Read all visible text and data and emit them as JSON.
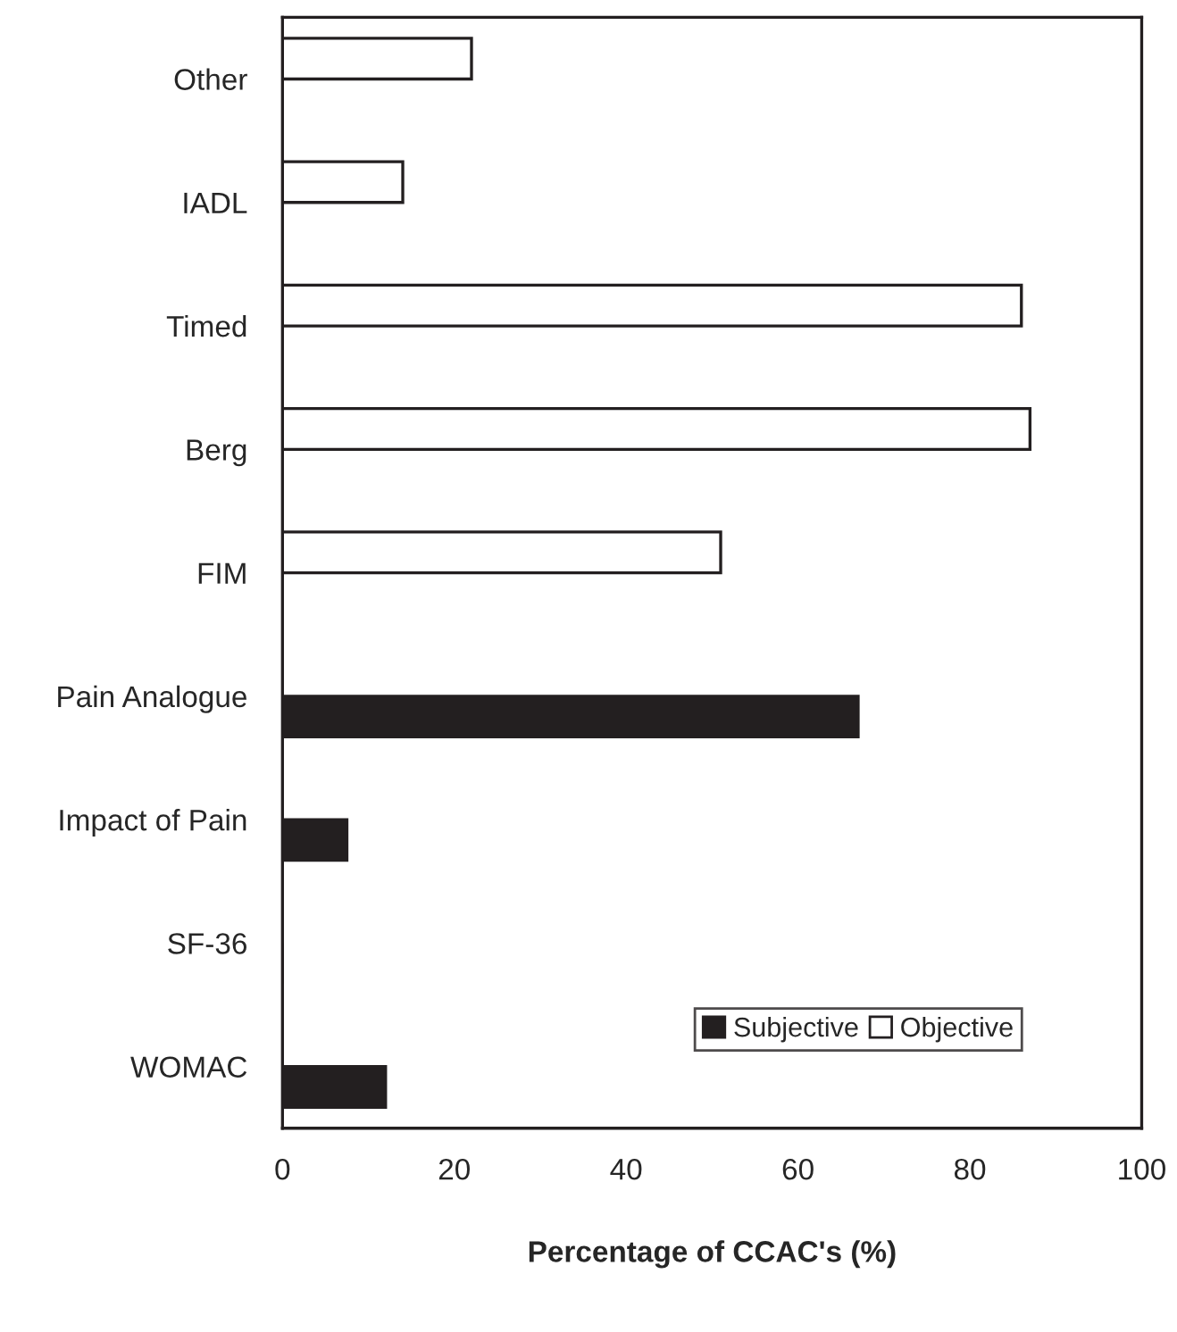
{
  "chart_data": {
    "type": "bar",
    "orientation": "horizontal",
    "xlabel": "Percentage of CCAC's (%)",
    "categories": [
      "Other",
      "IADL",
      "Timed",
      "Berg",
      "FIM",
      "Pain Analogue",
      "Impact of Pain",
      "SF-36",
      "WOMAC"
    ],
    "series": [
      {
        "name": "Subjective",
        "color": "#231f20",
        "values": [
          null,
          null,
          null,
          null,
          null,
          67,
          7.5,
          0,
          12
        ]
      },
      {
        "name": "Objective",
        "color": "#ffffff",
        "values": [
          22,
          14,
          86,
          87,
          51,
          null,
          null,
          null,
          null
        ]
      }
    ],
    "xlim": [
      0,
      100
    ],
    "xticks": [
      0,
      20,
      40,
      60,
      80,
      100
    ],
    "grid": false,
    "legend": "bottom right"
  }
}
